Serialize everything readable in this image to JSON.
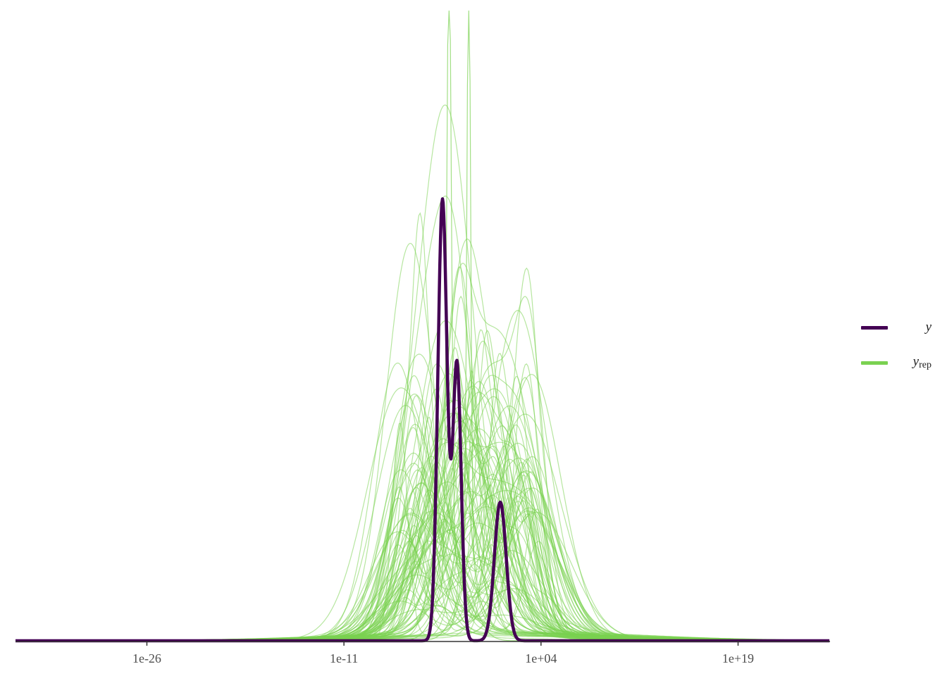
{
  "colors": {
    "y": "#440154",
    "y_rep": "#7ad151",
    "axis": "#333333",
    "tick_text": "#4d4d4d"
  },
  "legend": {
    "y_label": "y",
    "y_rep_label": "y",
    "y_rep_subscript": "rep"
  },
  "chart_data": {
    "type": "line",
    "title": "",
    "xlabel": "",
    "ylabel": "",
    "x_scale": "log10",
    "xlim": [
      1e-36,
      1e+26
    ],
    "ylim": [
      0,
      1
    ],
    "x_ticks": [
      1e-26,
      1e-11,
      10000.0,
      1e+19
    ],
    "x_tick_labels": [
      "1e-26",
      "1e-11",
      "1e+04",
      "1e+19"
    ],
    "y_axis_shown": false,
    "grid": false,
    "legend_position": "right",
    "series": [
      {
        "name": "y",
        "kind": "kernel density (observed)",
        "peaks_log10x": [
          -3.5,
          -2.4,
          0.9
        ],
        "peak_heights": [
          0.7,
          0.44,
          0.22
        ]
      },
      {
        "name": "y_rep",
        "kind": "kernel density (replicated draws)",
        "draw_count": 100,
        "center_log10x_range": [
          -7,
          4
        ],
        "max_peak_height": 1.0
      }
    ]
  }
}
